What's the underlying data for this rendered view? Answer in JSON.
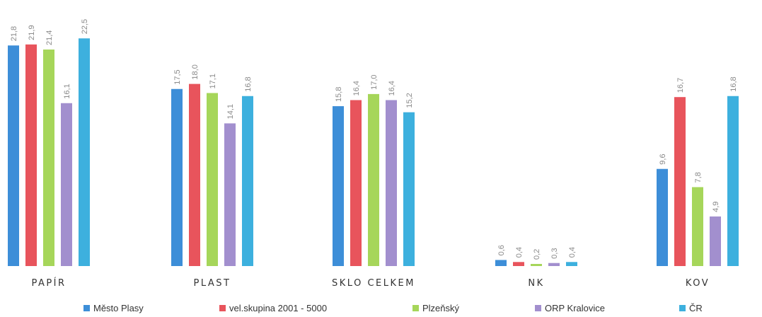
{
  "chart_data": {
    "type": "bar",
    "categories": [
      "PAPÍR",
      "PLAST",
      "SKLO CELKEM",
      "NK",
      "KOV"
    ],
    "series": [
      {
        "name": "Město Plasy",
        "color": "#3D8ED8",
        "values": [
          21.8,
          17.5,
          15.8,
          0.6,
          9.6
        ],
        "labels": [
          "21,8",
          "17,5",
          "15,8",
          "0,6",
          "9,6"
        ]
      },
      {
        "name": "vel.skupina 2001 - 5000",
        "color": "#E8545C",
        "values": [
          21.9,
          18.0,
          16.4,
          0.4,
          16.7
        ],
        "labels": [
          "21,9",
          "18,0",
          "16,4",
          "0,4",
          "16,7"
        ]
      },
      {
        "name": "Plzeňský",
        "color": "#A6D65A",
        "values": [
          21.4,
          17.1,
          17.0,
          0.2,
          7.8
        ],
        "labels": [
          "21,4",
          "17,1",
          "17,0",
          "0,2",
          "7,8"
        ]
      },
      {
        "name": "ORP Kralovice",
        "color": "#A28FCE",
        "values": [
          16.1,
          14.1,
          16.4,
          0.3,
          4.9
        ],
        "labels": [
          "16,1",
          "14,1",
          "16,4",
          "0,3",
          "4,9"
        ]
      },
      {
        "name": "ČR",
        "color": "#3DB0DE",
        "values": [
          22.5,
          16.8,
          15.2,
          0.4,
          16.8
        ],
        "labels": [
          "22,5",
          "16,8",
          "15,2",
          "0,4",
          "16,8"
        ]
      }
    ],
    "ylim": [
      0,
      24
    ],
    "grid": false,
    "legend_position": "bottom"
  }
}
